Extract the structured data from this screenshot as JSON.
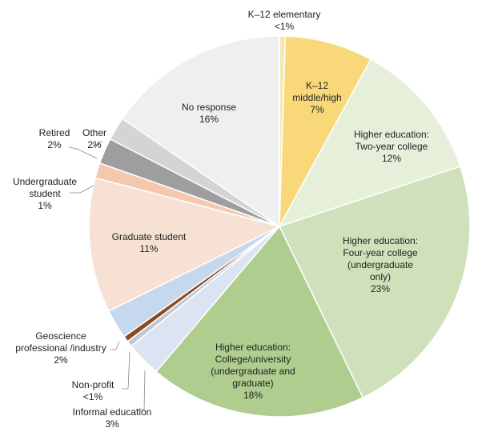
{
  "chart_data": {
    "type": "pie",
    "title": "",
    "slices": [
      {
        "label_lines": [
          "K–12 elementary"
        ],
        "pct_text": "<1%",
        "value": 0.5,
        "color": "#f4e7b6"
      },
      {
        "label_lines": [
          "K–12",
          "middle/high"
        ],
        "pct_text": "7%",
        "value": 7.5,
        "color": "#f9d87a"
      },
      {
        "label_lines": [
          "Higher education:",
          "Two-year college"
        ],
        "pct_text": "12%",
        "value": 12,
        "color": "#e5efda"
      },
      {
        "label_lines": [
          "Higher education:",
          "Four-year college",
          "(undergraduate",
          "only)"
        ],
        "pct_text": "23%",
        "value": 23,
        "color": "#cfe1bb"
      },
      {
        "label_lines": [
          "Higher education:",
          "College/university",
          "(undergraduate and",
          "graduate)"
        ],
        "pct_text": "18%",
        "value": 18.5,
        "color": "#aecd8f"
      },
      {
        "label_lines": [
          "Informal education"
        ],
        "pct_text": "3%",
        "value": 3,
        "color": "#dce3f3"
      },
      {
        "label_lines": [
          "Non-profit"
        ],
        "pct_text": "<1%",
        "value": 0.5,
        "color": "#c0c8d6"
      },
      {
        "label_lines": [],
        "pct_text": "",
        "value": 0.5,
        "color": "#8b4a22"
      },
      {
        "label_lines": [
          "Geoscience",
          "professional /industry"
        ],
        "pct_text": "2%",
        "value": 2.5,
        "color": "#c6d8ed"
      },
      {
        "label_lines": [
          "Graduate student"
        ],
        "pct_text": "11%",
        "value": 11.5,
        "color": "#f7e1d4"
      },
      {
        "label_lines": [
          "Undergraduate",
          "student"
        ],
        "pct_text": "1%",
        "value": 1.3,
        "color": "#f3c8ae"
      },
      {
        "label_lines": [
          "Retired"
        ],
        "pct_text": "2%",
        "value": 2.2,
        "color": "#9e9e9e"
      },
      {
        "label_lines": [
          "Other"
        ],
        "pct_text": "2%",
        "value": 2,
        "color": "#d4d4d4"
      },
      {
        "label_lines": [
          "No response"
        ],
        "pct_text": "16%",
        "value": 15.5,
        "color": "#efefef"
      }
    ]
  }
}
